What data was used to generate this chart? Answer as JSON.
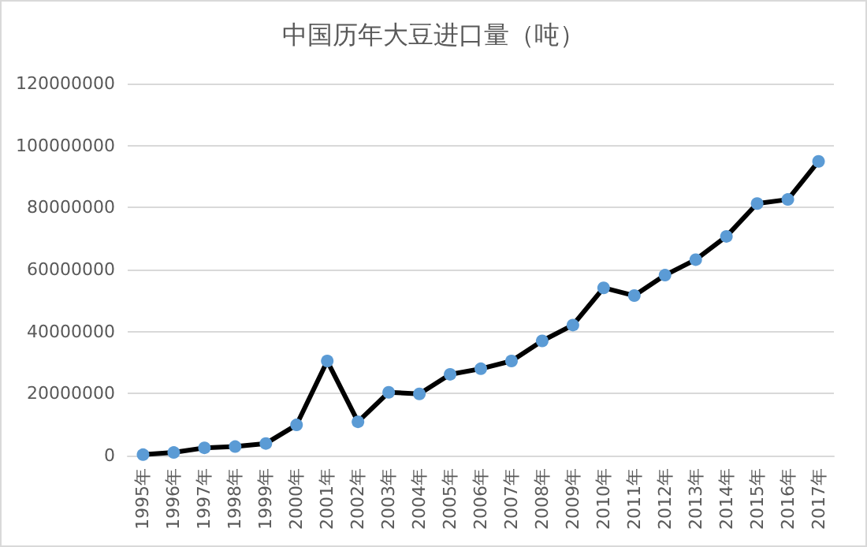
{
  "chart_data": {
    "type": "line",
    "title": "中国历年大豆进口量（吨）",
    "categories": [
      "1995年",
      "1996年",
      "1997年",
      "1998年",
      "1999年",
      "2000年",
      "2001年",
      "2002年",
      "2003年",
      "2004年",
      "2005年",
      "2006年",
      "2007年",
      "2008年",
      "2009年",
      "2010年",
      "2011年",
      "2012年",
      "2013年",
      "2014年",
      "2015年",
      "2016年",
      "2017年"
    ],
    "series": [
      {
        "color": "#000000",
        "values": [
          300000,
          1000000,
          2500000,
          2900000,
          3900000,
          9900000,
          30500000,
          10900000,
          20400000,
          19900000,
          26200000,
          28000000,
          30500000,
          37000000,
          42100000,
          54100000,
          51600000,
          58200000,
          63200000,
          70700000,
          81300000,
          82600000,
          94900000
        ]
      }
    ],
    "marker": "circle",
    "line_style": "solid",
    "ylim": [
      0,
      120000000
    ],
    "yticks": [
      0,
      20000000,
      40000000,
      60000000,
      80000000,
      100000000,
      120000000
    ],
    "grid": "y"
  }
}
